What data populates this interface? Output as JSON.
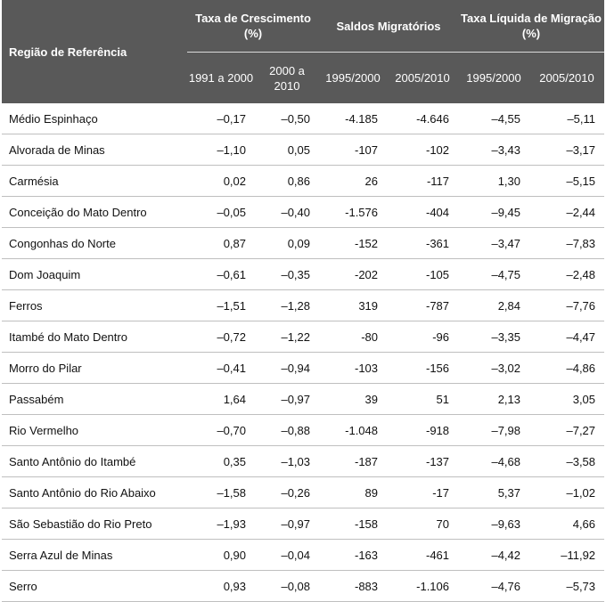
{
  "header": {
    "region_label": "Região de Referência",
    "groups": [
      "Taxa de Crescimento (%)",
      "Saldos Migratórios",
      "Taxa Líquida de Migração (%)"
    ],
    "sub_headers": [
      "1991 a 2000",
      "2000 a 2010",
      "1995/2000",
      "2005/2010",
      "1995/2000",
      "2005/2010"
    ]
  },
  "table": {
    "rows": [
      [
        "Médio Espinhaço",
        "–0,17",
        "–0,50",
        "-4.185",
        "-4.646",
        "–4,55",
        "–5,11"
      ],
      [
        "Alvorada de Minas",
        "–1,10",
        "0,05",
        "-107",
        "-102",
        "–3,43",
        "–3,17"
      ],
      [
        "Carmésia",
        "0,02",
        "0,86",
        "26",
        "-117",
        "1,30",
        "–5,15"
      ],
      [
        "Conceição do Mato Dentro",
        "–0,05",
        "–0,40",
        "-1.576",
        "-404",
        "–9,45",
        "–2,44"
      ],
      [
        "Congonhas do Norte",
        "0,87",
        "0,09",
        "-152",
        "-361",
        "–3,47",
        "–7,83"
      ],
      [
        "Dom Joaquim",
        "–0,61",
        "–0,35",
        "-202",
        "-105",
        "–4,75",
        "–2,48"
      ],
      [
        "Ferros",
        "–1,51",
        "–1,28",
        "319",
        "-787",
        "2,84",
        "–7,76"
      ],
      [
        "Itambé do Mato Dentro",
        "–0,72",
        "–1,22",
        "-80",
        "-96",
        "–3,35",
        "–4,47"
      ],
      [
        "Morro do Pilar",
        "–0,41",
        "–0,94",
        "-103",
        "-156",
        "–3,02",
        "–4,86"
      ],
      [
        "Passabém",
        "1,64",
        "–0,97",
        "39",
        "51",
        "2,13",
        "3,05"
      ],
      [
        "Rio Vermelho",
        "–0,70",
        "–0,88",
        "-1.048",
        "-918",
        "–7,98",
        "–7,27"
      ],
      [
        "Santo Antônio do Itambé",
        "0,35",
        "–1,03",
        "-187",
        "-137",
        "–4,68",
        "–3,58"
      ],
      [
        "Santo Antônio do Rio Abaixo",
        "–1,58",
        "–0,26",
        "89",
        "-17",
        "5,37",
        "–1,02"
      ],
      [
        "São Sebastião do Rio Preto",
        "–1,93",
        "–0,97",
        "-158",
        "70",
        "–9,63",
        "4,66"
      ],
      [
        "Serra Azul de Minas",
        "0,90",
        "–0,04",
        "-163",
        "-461",
        "–4,42",
        "–11,92"
      ],
      [
        "Serro",
        "0,93",
        "–0,08",
        "-883",
        "-1.106",
        "–4,76",
        "–5,73"
      ]
    ]
  }
}
